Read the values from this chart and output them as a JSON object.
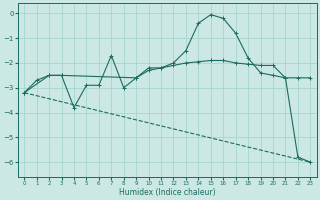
{
  "xlabel": "Humidex (Indice chaleur)",
  "background_color": "#cce8e4",
  "grid_color": "#a8d4ce",
  "line_color": "#1a6b60",
  "xlim": [
    -0.5,
    23.5
  ],
  "ylim": [
    -6.6,
    0.4
  ],
  "yticks": [
    0,
    -1,
    -2,
    -3,
    -4,
    -5,
    -6
  ],
  "xticks": [
    0,
    1,
    2,
    3,
    4,
    5,
    6,
    7,
    8,
    9,
    10,
    11,
    12,
    13,
    14,
    15,
    16,
    17,
    18,
    19,
    20,
    21,
    22,
    23
  ],
  "line1_x": [
    0,
    1,
    2,
    3,
    4,
    5,
    6,
    7,
    8,
    9,
    10,
    11,
    12,
    13,
    14,
    15,
    16,
    17,
    18,
    19,
    20,
    21,
    22,
    23
  ],
  "line1_y": [
    -3.2,
    -2.7,
    -2.5,
    -2.5,
    -3.8,
    -2.9,
    -2.9,
    -1.7,
    -3.0,
    -2.6,
    -2.2,
    -2.2,
    -2.0,
    -1.5,
    -0.4,
    -0.05,
    -0.2,
    -0.8,
    -1.8,
    -2.4,
    -2.5,
    -2.6,
    -5.8,
    -6.0
  ],
  "line2_x": [
    0,
    2,
    3,
    9,
    10,
    11,
    12,
    13,
    14,
    15,
    16,
    17,
    18,
    19,
    20,
    21,
    22,
    23
  ],
  "line2_y": [
    -3.2,
    -2.5,
    -2.5,
    -2.6,
    -2.3,
    -2.2,
    -2.1,
    -2.0,
    -1.95,
    -1.9,
    -1.9,
    -2.0,
    -2.05,
    -2.1,
    -2.1,
    -2.6,
    -2.6,
    -2.6
  ],
  "line3_x": [
    0,
    23
  ],
  "line3_y": [
    -3.2,
    -6.0
  ]
}
